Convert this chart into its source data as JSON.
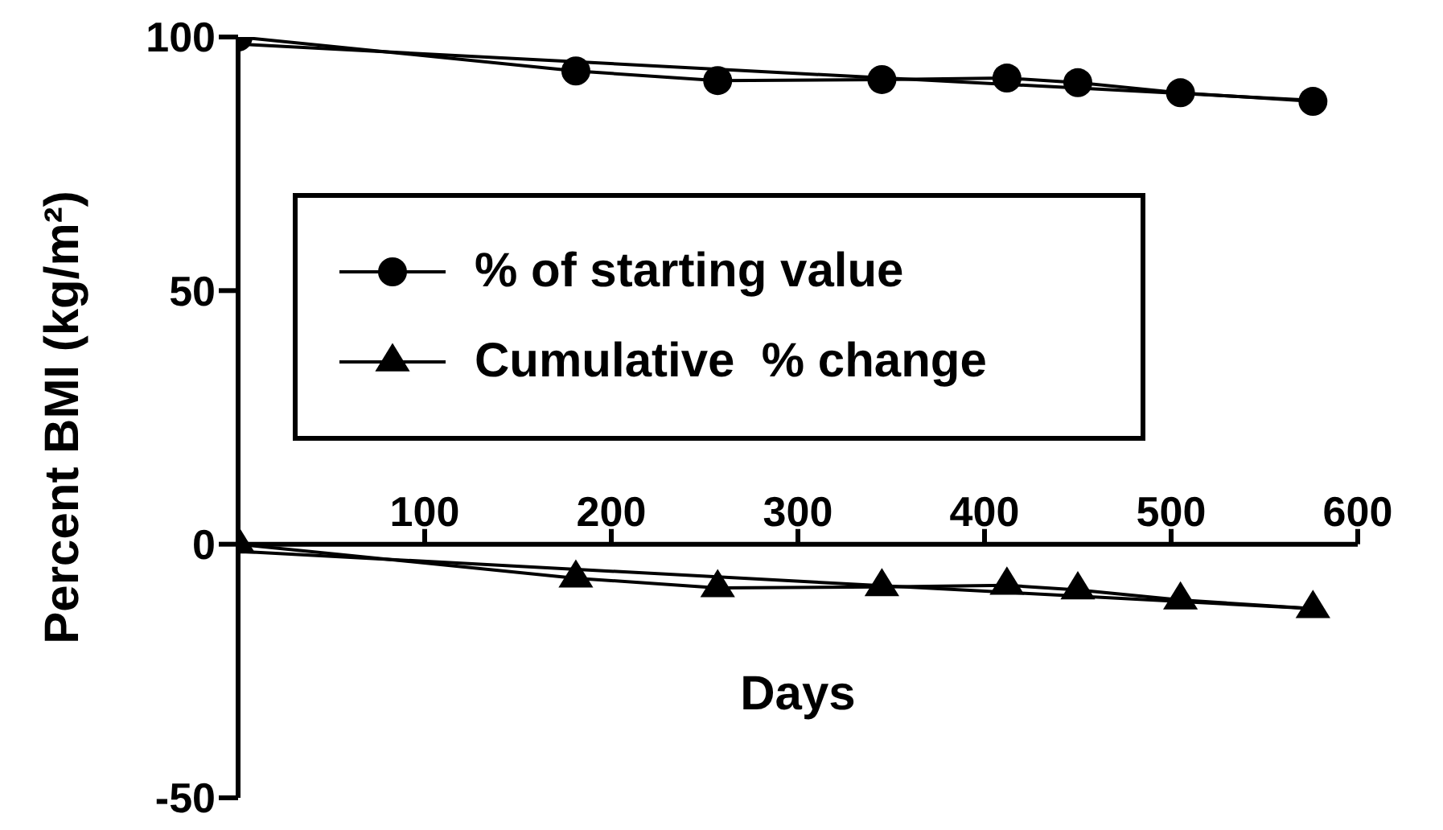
{
  "chart_data": {
    "type": "line",
    "xlabel": "Days",
    "ylabel": "Percent BMI (kg/m²)",
    "xlim": [
      0,
      600
    ],
    "xticks": [
      100,
      200,
      300,
      400,
      500,
      600
    ],
    "ylim": [
      -50,
      100
    ],
    "yticks": [
      -50,
      0,
      50,
      100
    ],
    "legend": "left",
    "series": [
      {
        "name": "% of starting value",
        "color": "#000000",
        "marker": "circle",
        "x": [
          0,
          181,
          257,
          345,
          412,
          450,
          505,
          576
        ],
        "values": [
          100,
          93.3,
          91.4,
          91.6,
          91.9,
          91.0,
          89.0,
          87.3
        ]
      },
      {
        "name": "Cumulative  % change",
        "color": "#000000",
        "marker": "triangle",
        "x": [
          0,
          181,
          257,
          345,
          412,
          450,
          505,
          576
        ],
        "values": [
          0,
          -6.7,
          -8.6,
          -8.4,
          -8.1,
          -9.0,
          -11.0,
          -12.7
        ]
      },
      {
        "type": "line",
        "color": "#000000",
        "marker": "none",
        "x": [
          0,
          576
        ],
        "values": [
          98.6,
          87.5
        ]
      },
      {
        "type": "line",
        "color": "#000000",
        "marker": "none",
        "x": [
          0,
          576
        ],
        "values": [
          -1.4,
          -12.7
        ]
      }
    ]
  }
}
